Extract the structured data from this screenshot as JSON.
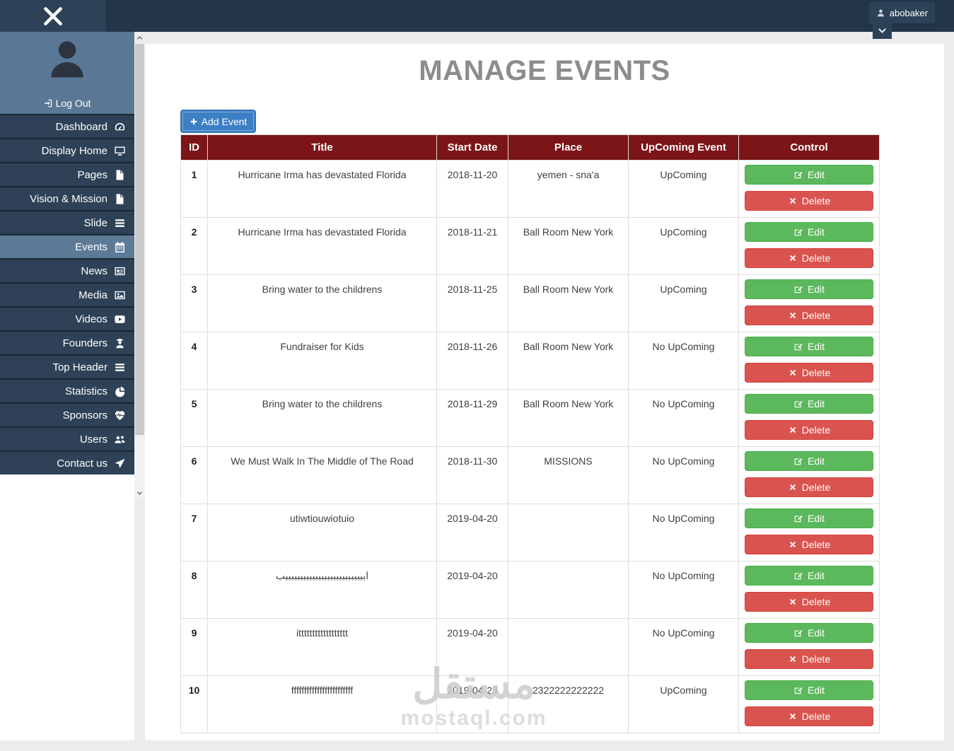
{
  "topbar": {
    "username": "abobaker"
  },
  "sidebar": {
    "logout_label": "Log Out",
    "items": [
      {
        "slug": "dashboard",
        "label": "Dashboard",
        "icon": "dashboard-icon",
        "active": false
      },
      {
        "slug": "display-home",
        "label": "Display Home",
        "icon": "monitor-icon",
        "active": false
      },
      {
        "slug": "pages",
        "label": "Pages",
        "icon": "file-icon",
        "active": false
      },
      {
        "slug": "vision-mission",
        "label": "Vision & Mission",
        "icon": "file-icon",
        "active": false
      },
      {
        "slug": "slide",
        "label": "Slide",
        "icon": "bars-icon",
        "active": false
      },
      {
        "slug": "events",
        "label": "Events",
        "icon": "calendar-icon",
        "active": true
      },
      {
        "slug": "news",
        "label": "News",
        "icon": "newspaper-icon",
        "active": false
      },
      {
        "slug": "media",
        "label": "Media",
        "icon": "image-icon",
        "active": false
      },
      {
        "slug": "videos",
        "label": "Videos",
        "icon": "youtube-icon",
        "active": false
      },
      {
        "slug": "founders",
        "label": "Founders",
        "icon": "founder-icon",
        "active": false
      },
      {
        "slug": "top-header",
        "label": "Top Header",
        "icon": "bars-icon",
        "active": false
      },
      {
        "slug": "statistics",
        "label": "Statistics",
        "icon": "pie-chart-icon",
        "active": false
      },
      {
        "slug": "sponsors",
        "label": "Sponsors",
        "icon": "heartbeat-icon",
        "active": false
      },
      {
        "slug": "users",
        "label": "Users",
        "icon": "users-icon",
        "active": false
      },
      {
        "slug": "contact-us",
        "label": "Contact us",
        "icon": "paper-plane-icon",
        "active": false
      }
    ]
  },
  "main": {
    "title": "MANAGE EVENTS",
    "add_event_label": "Add Event",
    "table": {
      "headers": [
        "ID",
        "Title",
        "Start Date",
        "Place",
        "UpComing Event",
        "Control"
      ],
      "edit_label": "Edit",
      "delete_label": "Delete",
      "rows": [
        {
          "id": "1",
          "title": "Hurricane Irma has devastated Florida",
          "start_date": "2018-11-20",
          "place": "yemen - sna'a",
          "upcoming": "UpComing"
        },
        {
          "id": "2",
          "title": "Hurricane Irma has devastated Florida",
          "start_date": "2018-11-21",
          "place": "Ball Room New York",
          "upcoming": "UpComing"
        },
        {
          "id": "3",
          "title": "Bring water to the childrens",
          "start_date": "2018-11-25",
          "place": "Ball Room New York",
          "upcoming": "UpComing"
        },
        {
          "id": "4",
          "title": "Fundraiser for Kids",
          "start_date": "2018-11-26",
          "place": "Ball Room New York",
          "upcoming": "No UpComing"
        },
        {
          "id": "5",
          "title": "Bring water to the childrens",
          "start_date": "2018-11-29",
          "place": "Ball Room New York",
          "upcoming": "No UpComing"
        },
        {
          "id": "6",
          "title": "We Must Walk In The Middle of The Road",
          "start_date": "2018-11-30",
          "place": "MISSIONS",
          "upcoming": "No UpComing"
        },
        {
          "id": "7",
          "title": "utiwtiouwiotuio",
          "start_date": "2019-04-20",
          "place": "",
          "upcoming": "No UpComing"
        },
        {
          "id": "8",
          "title": "ابببببببببببببببببببببببببببب",
          "start_date": "2019-04-20",
          "place": "",
          "upcoming": "No UpComing"
        },
        {
          "id": "9",
          "title": "itttttttttttttttttt",
          "start_date": "2019-04-20",
          "place": "",
          "upcoming": "No UpComing"
        },
        {
          "id": "10",
          "title": "ffffffffffffffffffffffff",
          "start_date": "2019-04-23",
          "place": "2322222222222",
          "upcoming": "UpComing"
        }
      ]
    }
  },
  "watermark": {
    "arabic": "مستقل",
    "domain": "mostaql.com"
  },
  "colors": {
    "navbar": "#223549",
    "navbar_left": "#2D4157",
    "sidebar_item": "#2E4157",
    "sidebar_active": "#5D7A96",
    "profile_bg": "#5A7896",
    "table_header_maroon": "#7B1517",
    "edit_green": "#5CB85C",
    "delete_red": "#D9534F",
    "add_event_blue": "#3D7FC4",
    "title_gray": "#8C8C8C"
  }
}
